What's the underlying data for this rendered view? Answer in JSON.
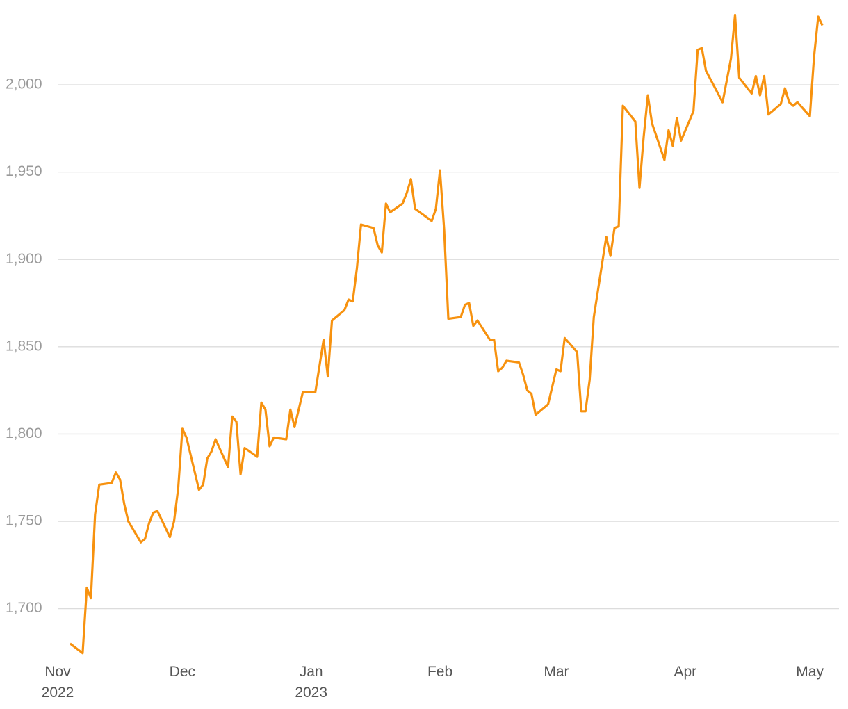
{
  "chart_data": {
    "type": "line",
    "x": [
      3,
      6,
      7,
      8,
      9,
      10,
      13,
      14,
      15,
      16,
      17,
      20,
      21,
      22,
      23,
      24,
      27,
      28,
      29,
      30,
      31,
      34,
      35,
      36,
      37,
      38,
      41,
      42,
      43,
      44,
      45,
      48,
      49,
      50,
      51,
      52,
      55,
      56,
      57,
      59,
      62,
      64,
      65,
      66,
      69,
      70,
      71,
      72,
      73,
      76,
      77,
      78,
      79,
      80,
      83,
      84,
      85,
      86,
      90,
      91,
      92,
      93,
      94,
      97,
      98,
      99,
      100,
      101,
      104,
      105,
      106,
      107,
      108,
      111,
      112,
      113,
      114,
      115,
      118,
      120,
      121,
      122,
      125,
      126,
      127,
      128,
      129,
      132,
      133,
      134,
      135,
      136,
      139,
      140,
      141,
      142,
      143,
      146,
      147,
      148,
      149,
      150,
      153,
      154,
      155,
      156,
      160,
      162,
      163,
      164,
      167,
      168,
      169,
      170,
      171,
      174,
      175,
      176,
      177,
      178,
      181,
      182,
      183,
      184
    ],
    "series": [
      {
        "color": "#f7920f",
        "values": [
          1680,
          1674.5,
          1712,
          1706,
          1754,
          1771,
          1772,
          1778,
          1774,
          1760,
          1750,
          1738,
          1740,
          1749,
          1755,
          1756,
          1741,
          1750,
          1769,
          1803,
          1798,
          1768,
          1771,
          1786,
          1790,
          1797,
          1781,
          1810,
          1807,
          1777,
          1792,
          1787,
          1818,
          1814,
          1793,
          1798,
          1797,
          1814,
          1804,
          1824,
          1824,
          1854,
          1833,
          1865,
          1871,
          1877,
          1876,
          1895,
          1920,
          1918,
          1908,
          1904,
          1932,
          1927,
          1932,
          1938,
          1946,
          1929,
          1922,
          1929,
          1951,
          1917,
          1866,
          1867,
          1874,
          1875,
          1862,
          1865,
          1854,
          1854,
          1836,
          1838,
          1842,
          1841,
          1834,
          1825,
          1823,
          1811,
          1817,
          1837,
          1836,
          1855,
          1847,
          1813,
          1813,
          1831,
          1867,
          1913,
          1902,
          1918,
          1919,
          1988,
          1979,
          1941,
          1970,
          1994,
          1978,
          1957,
          1974,
          1965,
          1981,
          1968,
          1985,
          2020,
          2021,
          2008,
          1990,
          2015,
          2040,
          2004,
          1995,
          2005,
          1994,
          2005,
          1983,
          1989,
          1998,
          1990,
          1988,
          1990,
          1982,
          2016,
          2039,
          2034
        ]
      }
    ],
    "xlim": [
      0,
      188
    ],
    "xticks": [
      {
        "value": 0,
        "label": "Nov\n2022"
      },
      {
        "value": 30,
        "label": "Dec"
      },
      {
        "value": 61,
        "label": "Jan\n2023"
      },
      {
        "value": 92,
        "label": "Feb"
      },
      {
        "value": 120,
        "label": "Mar"
      },
      {
        "value": 151,
        "label": "Apr"
      },
      {
        "value": 181,
        "label": "May"
      }
    ],
    "ylim": [
      1672,
      2048
    ],
    "yticks": [
      {
        "value": 1700,
        "label": "1,700"
      },
      {
        "value": 1750,
        "label": "1,750"
      },
      {
        "value": 1800,
        "label": "1,800"
      },
      {
        "value": 1850,
        "label": "1,850"
      },
      {
        "value": 1900,
        "label": "1,900"
      },
      {
        "value": 1950,
        "label": "1,950"
      },
      {
        "value": 2000,
        "label": "2,000"
      }
    ],
    "grid": true
  }
}
